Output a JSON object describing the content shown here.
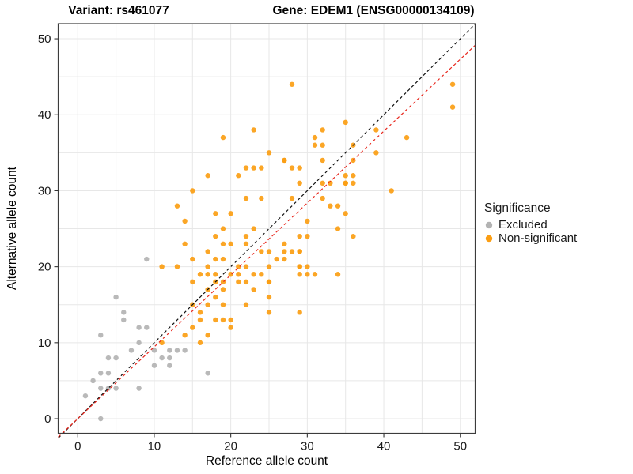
{
  "chart_data": {
    "type": "scatter",
    "title_left": "Variant: rs461077",
    "title_right": "Gene: EDEM1 (ENSG00000134109)",
    "xlabel": "Reference allele count",
    "ylabel": "Alternative allele count",
    "x_ticks": [
      0,
      10,
      20,
      30,
      40,
      50
    ],
    "y_ticks": [
      0,
      10,
      20,
      30,
      40,
      50
    ],
    "x_range": [
      -2.56,
      51.94
    ],
    "y_range": [
      -1.92,
      51.98
    ],
    "grid_interval": 5,
    "grid_color": "#E7E7E7",
    "panel_border_color": "#3C3C3C",
    "tick_label_color": "#1a1a1a",
    "legend": {
      "title": "Significance",
      "items": [
        {
          "label": "Excluded",
          "color": "#B3B3B3"
        },
        {
          "label": "Non-significant",
          "color": "#FB9E13"
        }
      ]
    },
    "lines": [
      {
        "name": "identity-line",
        "color": "#111111",
        "dash": "4,3",
        "x1": -2.56,
        "y1": -2.56,
        "x2": 51.94,
        "y2": 51.94
      },
      {
        "name": "ratio-line",
        "color": "#E8281E",
        "dash": "4,3",
        "x1": -2.56,
        "y1": -2.42,
        "x2": 51.94,
        "y2": 49.14
      }
    ],
    "series": [
      {
        "name": "Excluded",
        "color": "#B3B3B3",
        "points": [
          [
            1,
            3
          ],
          [
            2,
            5
          ],
          [
            3,
            0
          ],
          [
            3,
            4
          ],
          [
            3,
            6
          ],
          [
            3,
            11
          ],
          [
            4,
            4
          ],
          [
            4,
            6
          ],
          [
            4,
            8
          ],
          [
            5,
            4
          ],
          [
            5,
            8
          ],
          [
            5,
            16
          ],
          [
            6,
            13
          ],
          [
            6,
            14
          ],
          [
            7,
            9
          ],
          [
            8,
            4
          ],
          [
            8,
            10
          ],
          [
            8,
            12
          ],
          [
            9,
            12
          ],
          [
            9,
            21
          ],
          [
            10,
            7
          ],
          [
            10,
            9
          ],
          [
            11,
            8
          ],
          [
            12,
            7
          ],
          [
            12,
            8
          ],
          [
            12,
            9
          ],
          [
            13,
            9
          ],
          [
            14,
            9
          ],
          [
            17,
            6
          ]
        ]
      },
      {
        "name": "Non-significant",
        "color": "#FB9E13",
        "points": [
          [
            11,
            10
          ],
          [
            11,
            20
          ],
          [
            13,
            20
          ],
          [
            13,
            28
          ],
          [
            14,
            11
          ],
          [
            14,
            23
          ],
          [
            14,
            26
          ],
          [
            15,
            12
          ],
          [
            15,
            15
          ],
          [
            15,
            18
          ],
          [
            15,
            21
          ],
          [
            15,
            30
          ],
          [
            16,
            10
          ],
          [
            16,
            13
          ],
          [
            16,
            14
          ],
          [
            16,
            19
          ],
          [
            17,
            11
          ],
          [
            17,
            15
          ],
          [
            17,
            17
          ],
          [
            17,
            19
          ],
          [
            17,
            20
          ],
          [
            17,
            22
          ],
          [
            17,
            32
          ],
          [
            18,
            13
          ],
          [
            18,
            16
          ],
          [
            18,
            18
          ],
          [
            18,
            19
          ],
          [
            18,
            21
          ],
          [
            18,
            24
          ],
          [
            18,
            27
          ],
          [
            19,
            13
          ],
          [
            19,
            15
          ],
          [
            19,
            17
          ],
          [
            19,
            18
          ],
          [
            19,
            21
          ],
          [
            19,
            23
          ],
          [
            19,
            25
          ],
          [
            19,
            37
          ],
          [
            20,
            12
          ],
          [
            20,
            13
          ],
          [
            20,
            19
          ],
          [
            20,
            23
          ],
          [
            20,
            27
          ],
          [
            21,
            18
          ],
          [
            21,
            19
          ],
          [
            21,
            20
          ],
          [
            21,
            32
          ],
          [
            22,
            15
          ],
          [
            22,
            18
          ],
          [
            22,
            20
          ],
          [
            22,
            23
          ],
          [
            22,
            24
          ],
          [
            22,
            29
          ],
          [
            22,
            33
          ],
          [
            23,
            17
          ],
          [
            23,
            19
          ],
          [
            23,
            25
          ],
          [
            23,
            33
          ],
          [
            23,
            38
          ],
          [
            24,
            19
          ],
          [
            24,
            22
          ],
          [
            24,
            29
          ],
          [
            24,
            33
          ],
          [
            25,
            14
          ],
          [
            25,
            16
          ],
          [
            25,
            18
          ],
          [
            25,
            18
          ],
          [
            25,
            20
          ],
          [
            25,
            22
          ],
          [
            25,
            35
          ],
          [
            26,
            21
          ],
          [
            27,
            21
          ],
          [
            27,
            22
          ],
          [
            27,
            23
          ],
          [
            27,
            34
          ],
          [
            27,
            34
          ],
          [
            28,
            22
          ],
          [
            28,
            29
          ],
          [
            28,
            33
          ],
          [
            28,
            44
          ],
          [
            29,
            14
          ],
          [
            29,
            19
          ],
          [
            29,
            20
          ],
          [
            29,
            20
          ],
          [
            29,
            22
          ],
          [
            29,
            22
          ],
          [
            29,
            24
          ],
          [
            29,
            31
          ],
          [
            29,
            33
          ],
          [
            30,
            19
          ],
          [
            30,
            20
          ],
          [
            30,
            24
          ],
          [
            30,
            26
          ],
          [
            31,
            19
          ],
          [
            31,
            36
          ],
          [
            31,
            37
          ],
          [
            32,
            29
          ],
          [
            32,
            31
          ],
          [
            32,
            34
          ],
          [
            32,
            36
          ],
          [
            32,
            38
          ],
          [
            33,
            28
          ],
          [
            33,
            31
          ],
          [
            34,
            19
          ],
          [
            34,
            25
          ],
          [
            34,
            28
          ],
          [
            35,
            27
          ],
          [
            35,
            31
          ],
          [
            35,
            31
          ],
          [
            35,
            32
          ],
          [
            35,
            39
          ],
          [
            36,
            24
          ],
          [
            36,
            31
          ],
          [
            36,
            32
          ],
          [
            36,
            34
          ],
          [
            36,
            36
          ],
          [
            39,
            35
          ],
          [
            39,
            38
          ],
          [
            41,
            30
          ],
          [
            43,
            37
          ],
          [
            49,
            41
          ],
          [
            49,
            44
          ]
        ]
      }
    ]
  }
}
